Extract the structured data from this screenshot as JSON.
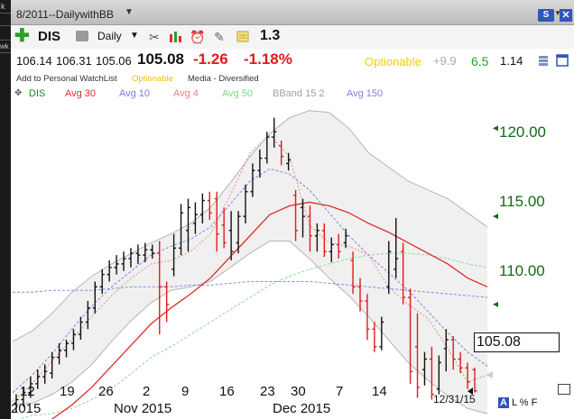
{
  "window": {
    "title": "8/2011--DailywithBB",
    "s_button": "S"
  },
  "left_edge": {
    "top": "k",
    "middle": "wk"
  },
  "toolbar": {
    "symbol": "DIS",
    "period": "Daily",
    "value": "1.3"
  },
  "quote": {
    "open": "106.14",
    "high": "106.31",
    "low": "105.06",
    "last": "105.08",
    "change": "-1.26",
    "change_pct": "-1.18%",
    "optionable": "Optionable",
    "extra1": "+9.9",
    "extra2": "6.5",
    "extra3": "1.14"
  },
  "info": {
    "watchlist": "Add to Personal WatchList",
    "optionable": "Optionable",
    "sector": "Media - Diversified"
  },
  "legend": {
    "items": [
      {
        "label": "DIS",
        "color": "#1f8a1f"
      },
      {
        "label": "Avg 30",
        "color": "#e03030"
      },
      {
        "label": "Avg 10",
        "color": "#7b7be8"
      },
      {
        "label": "Avg 4",
        "color": "#f08080"
      },
      {
        "label": "Avg 50",
        "color": "#80d880"
      },
      {
        "label": "BBand 15 2",
        "color": "#a0a0a0"
      },
      {
        "label": "Avg 150",
        "color": "#8080e0"
      }
    ]
  },
  "chart_data": {
    "type": "candlestick",
    "y_ticks": [
      "120.00",
      "115.00",
      "110.00"
    ],
    "y_range": [
      103.5,
      121.5
    ],
    "x_ticks": [
      "12",
      "19",
      "26",
      "2",
      "9",
      "16",
      "23",
      "30",
      "7",
      "14"
    ],
    "x_months": [
      "2015",
      "Nov 2015",
      "Dec 2015"
    ],
    "last_price": "105.08",
    "last_date": "12/31/15",
    "bars": [
      {
        "o": 104.4,
        "h": 104.9,
        "l": 103.9,
        "c": 104.6,
        "dir": "up"
      },
      {
        "o": 104.6,
        "h": 105.3,
        "l": 104.2,
        "c": 105.0,
        "dir": "up"
      },
      {
        "o": 105.0,
        "h": 105.9,
        "l": 104.7,
        "c": 105.5,
        "dir": "up"
      },
      {
        "o": 105.5,
        "h": 106.3,
        "l": 105.2,
        "c": 105.9,
        "dir": "up"
      },
      {
        "o": 105.9,
        "h": 106.6,
        "l": 105.5,
        "c": 106.2,
        "dir": "up"
      },
      {
        "o": 106.1,
        "h": 107.3,
        "l": 105.8,
        "c": 107.0,
        "dir": "up"
      },
      {
        "o": 107.0,
        "h": 107.8,
        "l": 106.6,
        "c": 107.4,
        "dir": "up"
      },
      {
        "o": 107.4,
        "h": 108.0,
        "l": 107.0,
        "c": 107.8,
        "dir": "up"
      },
      {
        "o": 107.8,
        "h": 108.6,
        "l": 107.4,
        "c": 108.3,
        "dir": "up"
      },
      {
        "o": 108.3,
        "h": 109.3,
        "l": 108.0,
        "c": 109.0,
        "dir": "up"
      },
      {
        "o": 109.0,
        "h": 110.2,
        "l": 108.6,
        "c": 109.8,
        "dir": "up"
      },
      {
        "o": 109.8,
        "h": 111.3,
        "l": 109.5,
        "c": 111.0,
        "dir": "up"
      },
      {
        "o": 111.0,
        "h": 112.0,
        "l": 110.6,
        "c": 111.7,
        "dir": "up"
      },
      {
        "o": 111.7,
        "h": 112.5,
        "l": 111.3,
        "c": 112.1,
        "dir": "up"
      },
      {
        "o": 112.1,
        "h": 112.8,
        "l": 111.7,
        "c": 112.3,
        "dir": "up"
      },
      {
        "o": 112.3,
        "h": 113.0,
        "l": 111.9,
        "c": 112.6,
        "dir": "up"
      },
      {
        "o": 112.6,
        "h": 113.2,
        "l": 112.1,
        "c": 112.9,
        "dir": "up"
      },
      {
        "o": 112.9,
        "h": 113.4,
        "l": 112.3,
        "c": 112.8,
        "dir": "up"
      },
      {
        "o": 112.8,
        "h": 113.5,
        "l": 112.4,
        "c": 113.1,
        "dir": "up"
      },
      {
        "o": 113.1,
        "h": 113.4,
        "l": 112.6,
        "c": 112.9,
        "dir": "up"
      },
      {
        "o": 112.9,
        "h": 113.6,
        "l": 108.3,
        "c": 111.0,
        "dir": "down"
      },
      {
        "o": 111.0,
        "h": 111.3,
        "l": 109.0,
        "c": 110.0,
        "dir": "down"
      },
      {
        "o": 112.0,
        "h": 114.0,
        "l": 111.6,
        "c": 113.2,
        "dir": "up"
      },
      {
        "o": 113.2,
        "h": 115.7,
        "l": 112.8,
        "c": 115.2,
        "dir": "up"
      },
      {
        "o": 114.2,
        "h": 116.0,
        "l": 113.0,
        "c": 115.5,
        "dir": "up"
      },
      {
        "o": 114.6,
        "h": 115.8,
        "l": 114.0,
        "c": 115.1,
        "dir": "up"
      },
      {
        "o": 115.1,
        "h": 116.3,
        "l": 114.6,
        "c": 115.9,
        "dir": "up"
      },
      {
        "o": 115.9,
        "h": 116.4,
        "l": 114.8,
        "c": 115.2,
        "dir": "down"
      },
      {
        "o": 116.0,
        "h": 116.4,
        "l": 113.0,
        "c": 114.0,
        "dir": "down"
      },
      {
        "o": 114.5,
        "h": 115.5,
        "l": 113.2,
        "c": 113.5,
        "dir": "down"
      },
      {
        "o": 114.2,
        "h": 115.3,
        "l": 112.5,
        "c": 113.0,
        "dir": "up"
      },
      {
        "o": 113.5,
        "h": 115.3,
        "l": 112.9,
        "c": 115.0,
        "dir": "up"
      },
      {
        "o": 115.0,
        "h": 116.8,
        "l": 114.6,
        "c": 116.4,
        "dir": "up"
      },
      {
        "o": 116.4,
        "h": 118.0,
        "l": 116.1,
        "c": 117.6,
        "dir": "up"
      },
      {
        "o": 117.6,
        "h": 118.8,
        "l": 117.2,
        "c": 118.3,
        "dir": "up"
      },
      {
        "o": 118.3,
        "h": 119.8,
        "l": 118.0,
        "c": 119.5,
        "dir": "up"
      },
      {
        "o": 119.5,
        "h": 120.6,
        "l": 118.9,
        "c": 119.8,
        "dir": "up"
      },
      {
        "o": 119.0,
        "h": 119.3,
        "l": 117.9,
        "c": 118.4,
        "dir": "down"
      },
      {
        "o": 118.0,
        "h": 118.6,
        "l": 117.6,
        "c": 118.2,
        "dir": "up"
      },
      {
        "o": 116.2,
        "h": 116.5,
        "l": 113.6,
        "c": 114.2,
        "dir": "down"
      },
      {
        "o": 115.5,
        "h": 116.0,
        "l": 113.8,
        "c": 115.0,
        "dir": "up"
      },
      {
        "o": 115.0,
        "h": 115.6,
        "l": 113.0,
        "c": 113.9,
        "dir": "down"
      },
      {
        "o": 113.9,
        "h": 114.6,
        "l": 113.0,
        "c": 114.2,
        "dir": "up"
      },
      {
        "o": 114.2,
        "h": 114.6,
        "l": 112.7,
        "c": 113.0,
        "dir": "down"
      },
      {
        "o": 113.0,
        "h": 113.8,
        "l": 112.4,
        "c": 113.4,
        "dir": "up"
      },
      {
        "o": 113.4,
        "h": 114.0,
        "l": 112.6,
        "c": 113.0,
        "dir": "down"
      },
      {
        "o": 113.5,
        "h": 114.3,
        "l": 113.2,
        "c": 113.9,
        "dir": "up"
      },
      {
        "o": 112.5,
        "h": 113.0,
        "l": 110.6,
        "c": 111.0,
        "dir": "down"
      },
      {
        "o": 111.0,
        "h": 111.5,
        "l": 109.6,
        "c": 110.2,
        "dir": "down"
      },
      {
        "o": 110.2,
        "h": 110.6,
        "l": 108.0,
        "c": 108.6,
        "dir": "down"
      },
      {
        "o": 108.6,
        "h": 109.0,
        "l": 107.3,
        "c": 107.6,
        "dir": "down"
      },
      {
        "o": 107.6,
        "h": 109.3,
        "l": 107.4,
        "c": 109.0,
        "dir": "up"
      },
      {
        "o": 111.0,
        "h": 113.6,
        "l": 110.6,
        "c": 113.0,
        "dir": "up"
      },
      {
        "o": 112.0,
        "h": 114.9,
        "l": 111.5,
        "c": 112.6,
        "dir": "up"
      },
      {
        "o": 113.0,
        "h": 113.5,
        "l": 110.0,
        "c": 110.4,
        "dir": "down"
      },
      {
        "o": 110.4,
        "h": 110.9,
        "l": 105.5,
        "c": 106.2,
        "dir": "down"
      },
      {
        "o": 107.6,
        "h": 109.5,
        "l": 104.7,
        "c": 105.3,
        "dir": "down"
      },
      {
        "o": 106.3,
        "h": 107.3,
        "l": 105.4,
        "c": 106.9,
        "dir": "up"
      },
      {
        "o": 106.9,
        "h": 107.6,
        "l": 104.6,
        "c": 104.9,
        "dir": "down"
      },
      {
        "o": 105.2,
        "h": 107.1,
        "l": 104.9,
        "c": 106.7,
        "dir": "up"
      },
      {
        "o": 107.5,
        "h": 108.6,
        "l": 106.2,
        "c": 108.0,
        "dir": "up"
      },
      {
        "o": 108.0,
        "h": 108.2,
        "l": 106.3,
        "c": 106.9,
        "dir": "down"
      },
      {
        "o": 106.9,
        "h": 107.3,
        "l": 106.1,
        "c": 106.4,
        "dir": "down"
      },
      {
        "o": 106.4,
        "h": 106.7,
        "l": 105.2,
        "c": 105.6,
        "dir": "down"
      },
      {
        "o": 106.3,
        "h": 106.4,
        "l": 105.0,
        "c": 105.1,
        "dir": "down"
      }
    ],
    "bb_upper": [
      107.9,
      108.5,
      109.5,
      110.7,
      111.6,
      112.3,
      112.9,
      113.5,
      114.0,
      114.6,
      115.5,
      116.9,
      118.4,
      119.7,
      120.6,
      121.0,
      120.9,
      120.0,
      118.6,
      117.8,
      117.0,
      116.5,
      116.0,
      115.2,
      114.4
    ],
    "bb_lower": [
      104.3,
      104.4,
      104.9,
      105.6,
      106.6,
      107.9,
      109.1,
      110.1,
      110.8,
      111.0,
      111.3,
      112.1,
      112.9,
      113.6,
      113.6,
      112.6,
      111.5,
      110.5,
      109.3,
      108.0,
      106.7,
      105.7,
      104.8,
      104.1,
      103.8
    ],
    "avg10": [
      105.0,
      106.0,
      107.2,
      108.6,
      109.9,
      111.0,
      111.9,
      112.8,
      113.3,
      113.7,
      114.4,
      115.7,
      117.0,
      117.7,
      117.4,
      116.5,
      115.2,
      113.9,
      112.8,
      111.8,
      110.8,
      109.6,
      108.4,
      107.3,
      106.5
    ],
    "avg30": [
      102.5,
      102.9,
      103.5,
      104.3,
      105.3,
      106.5,
      107.7,
      108.9,
      109.8,
      110.6,
      111.5,
      112.7,
      113.9,
      115.1,
      115.6,
      115.8,
      115.6,
      115.2,
      114.6,
      114.1,
      113.5,
      112.9,
      112.3,
      111.5,
      111.0
    ],
    "avg50": [
      103.4,
      103.7,
      103.8,
      104.1,
      104.6,
      105.2,
      106.1,
      107.0,
      107.6,
      108.3,
      109.0,
      109.7,
      110.4,
      111.1,
      111.6,
      112.0,
      112.3,
      112.6,
      112.8,
      112.9,
      112.9,
      112.8,
      112.6,
      112.3,
      112.1
    ],
    "avg150": [
      110.7,
      110.7,
      110.8,
      110.8,
      110.8,
      110.9,
      111.0,
      111.0,
      111.0,
      111.1,
      111.1,
      111.2,
      111.3,
      111.3,
      111.3,
      111.3,
      111.2,
      111.1,
      111.0,
      110.9,
      110.8,
      110.7,
      110.6,
      110.5,
      110.4
    ],
    "avg4": [
      104.5,
      105.5,
      106.8,
      108.0,
      109.3,
      110.5,
      111.5,
      112.3,
      112.5,
      113.0,
      114.0,
      116.2,
      118.6,
      119.6,
      118.4,
      114.5,
      113.5,
      113.3,
      112.8,
      111.0,
      110.0,
      109.2,
      107.5,
      105.6,
      106.0
    ]
  }
}
